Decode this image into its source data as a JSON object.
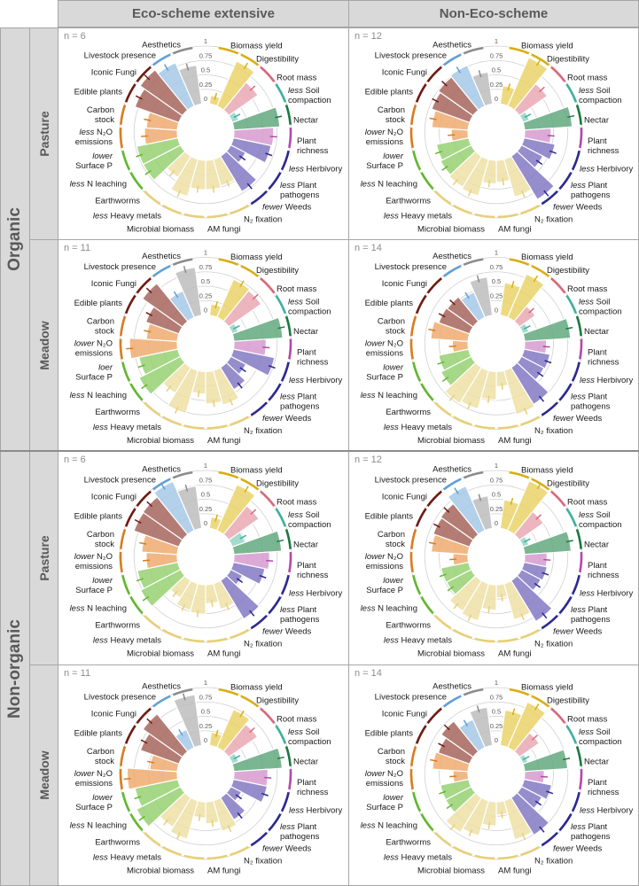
{
  "columns": [
    "Eco-scheme extensive",
    "Non-Eco-scheme"
  ],
  "systems": [
    "Organic",
    "Non-organic"
  ],
  "habitats": [
    "Pasture",
    "Meadow",
    "Pasture",
    "Meadow"
  ],
  "chart_data": {
    "type": "polar-bar",
    "rlim": [
      0,
      1
    ],
    "tick_labels": [
      "0",
      "0.25",
      "0.5",
      "0.75",
      "1"
    ],
    "grid": true,
    "categories": [
      {
        "key": "biomass_yield",
        "lines": [
          [
            "",
            "Biomass yield"
          ]
        ],
        "fill": "#ead36a",
        "ring": "#d9ae10"
      },
      {
        "key": "digestibility",
        "lines": [
          [
            "",
            "Digestibility"
          ]
        ],
        "fill": "#ead36a",
        "ring": "#d9ae10"
      },
      {
        "key": "root_mass",
        "lines": [
          [
            "",
            "Root mass"
          ]
        ],
        "fill": "#eaa9b4",
        "ring": "#d8687f"
      },
      {
        "key": "soil_compaction",
        "lines": [
          [
            "less",
            " Soil"
          ],
          [
            "",
            "compaction"
          ]
        ],
        "fill": "#93d5c6",
        "ring": "#3fb0a0"
      },
      {
        "key": "nectar",
        "lines": [
          [
            "",
            "Nectar"
          ]
        ],
        "fill": "#63a97f",
        "ring": "#1b7a3e"
      },
      {
        "key": "plant_richness",
        "lines": [
          [
            "",
            "Plant"
          ],
          [
            "",
            "richness"
          ]
        ],
        "fill": "#d79bd0",
        "ring": "#b348ab"
      },
      {
        "key": "herbivory",
        "lines": [
          [
            "less",
            " Herbivory"
          ]
        ],
        "fill": "#8479c4",
        "ring": "#2c2990"
      },
      {
        "key": "plant_pathogens",
        "lines": [
          [
            "less",
            " Plant"
          ],
          [
            "",
            "pathogens"
          ]
        ],
        "fill": "#8479c4",
        "ring": "#2c2990"
      },
      {
        "key": "weeds",
        "lines": [
          [
            "fewer",
            " Weeds"
          ]
        ],
        "fill": "#8479c4",
        "ring": "#2c2990"
      },
      {
        "key": "n2_fixation",
        "lines": [
          [
            "",
            "N₂ fixation"
          ]
        ],
        "fill": "#ede0a6",
        "ring": "#e8cf78"
      },
      {
        "key": "am_fungi",
        "lines": [
          [
            "",
            "AM fungi"
          ]
        ],
        "fill": "#ede0a6",
        "ring": "#e8cf78"
      },
      {
        "key": "microbial_biomass",
        "lines": [
          [
            "",
            "Microbial biomass"
          ]
        ],
        "fill": "#ede0a6",
        "ring": "#e8cf78"
      },
      {
        "key": "heavy_metals",
        "lines": [
          [
            "less",
            " Heavy metals"
          ]
        ],
        "fill": "#ede0a6",
        "ring": "#e8cf78"
      },
      {
        "key": "earthworms",
        "lines": [
          [
            "",
            "Earthworms"
          ]
        ],
        "fill": "#ede0a6",
        "ring": "#e8cf78"
      },
      {
        "key": "n_leaching",
        "lines": [
          [
            "less",
            " N leaching"
          ]
        ],
        "fill": "#97d173",
        "ring": "#62b82e"
      },
      {
        "key": "surface_p",
        "lines": [
          [
            "lower",
            ""
          ],
          [
            "",
            "Surface P"
          ]
        ],
        "fill": "#97d173",
        "ring": "#62b82e"
      },
      {
        "key": "n2o_emissions",
        "lines": [
          [
            "lower",
            " N₂O"
          ],
          [
            "",
            "emissions"
          ]
        ],
        "fill": "#eeac70",
        "ring": "#d97d1f"
      },
      {
        "key": "carbon_stock",
        "lines": [
          [
            "",
            "Carbon"
          ],
          [
            "",
            "stock"
          ]
        ],
        "fill": "#eeac70",
        "ring": "#d97d1f"
      },
      {
        "key": "edible_plants",
        "lines": [
          [
            "",
            "Edible plants"
          ]
        ],
        "fill": "#a6665d",
        "ring": "#6f1b13"
      },
      {
        "key": "iconic_fungi",
        "lines": [
          [
            "",
            "Iconic Fungi"
          ]
        ],
        "fill": "#a6665d",
        "ring": "#6f1b13"
      },
      {
        "key": "livestock_presence",
        "lines": [
          [
            "",
            "Livestock presence"
          ]
        ],
        "fill": "#a6c9e8",
        "ring": "#5f9fd8"
      },
      {
        "key": "aesthetics",
        "lines": [
          [
            "",
            "Aesthetics"
          ]
        ],
        "fill": "#bdbdbd",
        "ring": "#8c8c8c"
      }
    ],
    "panels": [
      {
        "column": "Eco-scheme extensive",
        "system": "Organic",
        "habitat": "Pasture",
        "n_label": "n = 6",
        "label_overrides": {
          "16": [
            [
              "less",
              " N₂O"
            ],
            [
              "",
              "emissions"
            ]
          ]
        },
        "values": [
          0.15,
          0.85,
          0.62,
          0.12,
          0.8,
          0.69,
          0.67,
          0.29,
          0.72,
          0.48,
          0.51,
          0.51,
          0.67,
          0.43,
          0.73,
          0.73,
          0.57,
          0.54,
          0.81,
          0.9,
          0.82,
          0.68
        ]
      },
      {
        "column": "Non-Eco-scheme",
        "system": "Organic",
        "habitat": "Pasture",
        "n_label": "n = 12",
        "label_overrides": {},
        "values": [
          0.32,
          0.92,
          0.59,
          0.12,
          0.83,
          0.46,
          0.55,
          0.42,
          0.88,
          0.68,
          0.38,
          0.41,
          0.66,
          0.63,
          0.6,
          0.57,
          0.29,
          0.63,
          0.7,
          0.74,
          0.77,
          0.56
        ]
      },
      {
        "column": "Eco-scheme extensive",
        "system": "Organic",
        "habitat": "Meadow",
        "n_label": "n = 11",
        "label_overrides": {
          "15": [
            [
              "loer",
              ""
            ],
            [
              "",
              "Surface P"
            ]
          ]
        },
        "values": [
          0.2,
          0.72,
          0.69,
          0.11,
          0.85,
          0.56,
          0.73,
          0.3,
          0.45,
          0.62,
          0.56,
          0.39,
          0.77,
          0.52,
          0.81,
          0.69,
          0.83,
          0.54,
          0.61,
          0.85,
          0.5,
          0.84
        ]
      },
      {
        "column": "Non-Eco-scheme",
        "system": "Organic",
        "habitat": "Meadow",
        "n_label": "n = 14",
        "label_overrides": {},
        "values": [
          0.57,
          0.82,
          0.34,
          0.11,
          0.8,
          0.38,
          0.46,
          0.44,
          0.75,
          0.79,
          0.26,
          0.49,
          0.69,
          0.73,
          0.59,
          0.53,
          0.27,
          0.65,
          0.57,
          0.55,
          0.48,
          0.67
        ]
      },
      {
        "column": "Eco-scheme extensive",
        "system": "Non-organic",
        "habitat": "Pasture",
        "n_label": "n = 6",
        "label_overrides": {},
        "values": [
          0.2,
          0.87,
          0.64,
          0.24,
          0.83,
          0.62,
          0.56,
          0.23,
          0.78,
          0.46,
          0.33,
          0.51,
          0.48,
          0.35,
          0.78,
          0.72,
          0.54,
          0.62,
          0.83,
          0.84,
          0.93,
          0.74
        ]
      },
      {
        "column": "Non-Eco-scheme",
        "system": "Non-organic",
        "habitat": "Pasture",
        "n_label": "n = 12",
        "label_overrides": {},
        "values": [
          0.5,
          0.94,
          0.51,
          0.11,
          0.81,
          0.39,
          0.41,
          0.38,
          0.83,
          0.65,
          0.23,
          0.44,
          0.67,
          0.62,
          0.48,
          0.49,
          0.26,
          0.64,
          0.67,
          0.69,
          0.84,
          0.57
        ]
      },
      {
        "column": "Eco-scheme extensive",
        "system": "Non-organic",
        "habitat": "Meadow",
        "n_label": "n = 11",
        "label_overrides": {},
        "values": [
          0.23,
          0.72,
          0.61,
          0.12,
          0.84,
          0.59,
          0.6,
          0.21,
          0.45,
          0.55,
          0.38,
          0.28,
          0.69,
          0.6,
          0.86,
          0.76,
          0.87,
          0.48,
          0.71,
          0.84,
          0.34,
          0.89
        ]
      },
      {
        "column": "Non-Eco-scheme",
        "system": "Non-organic",
        "habitat": "Meadow",
        "n_label": "n = 14",
        "label_overrides": {},
        "values": [
          0.62,
          0.86,
          0.42,
          0.09,
          0.75,
          0.34,
          0.49,
          0.4,
          0.76,
          0.7,
          0.23,
          0.42,
          0.63,
          0.71,
          0.5,
          0.5,
          0.26,
          0.62,
          0.58,
          0.68,
          0.53,
          0.67
        ]
      }
    ]
  }
}
